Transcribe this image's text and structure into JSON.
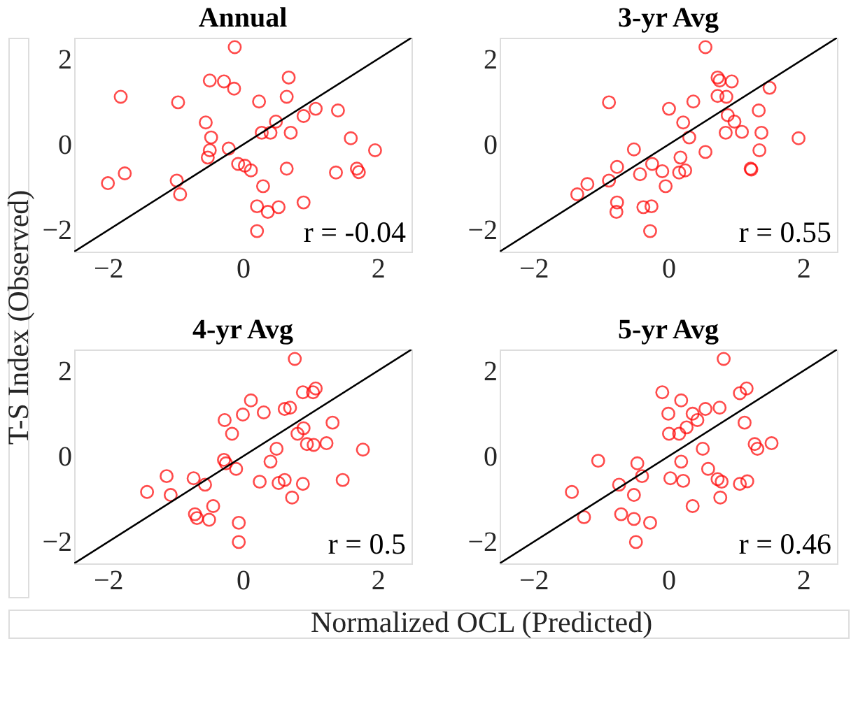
{
  "chart_data": [
    {
      "type": "scatter",
      "title": "Annual",
      "ylabel": "T-S Index (Observed)",
      "xlim": [
        -2.5,
        2.5
      ],
      "ylim": [
        -2.5,
        2.5
      ],
      "xticks": [
        -2,
        0,
        2
      ],
      "yticks": [
        -2,
        0,
        2
      ],
      "grid": false,
      "annotations": [
        "r = -0.04"
      ],
      "series": [
        {
          "type": "scatter",
          "marker": "circle",
          "color": "#ff0000",
          "x": [
            -0.12,
            -1.81,
            -0.96,
            -0.49,
            -0.28,
            -0.13,
            0.68,
            0.24,
            0.65,
            -0.55,
            -0.47,
            -0.49,
            -0.52,
            -0.21,
            0.49,
            0.28,
            0.41,
            0.71,
            0.9,
            1.08,
            1.41,
            1.6,
            1.96,
            1.38,
            1.69,
            1.72,
            0.65,
            -0.07,
            0.03,
            0.12,
            0.3,
            0.9,
            0.53,
            0.37,
            0.21,
            0.21,
            -2.0,
            -1.75,
            -0.98,
            -0.93
          ],
          "values": [
            2.28,
            1.12,
            0.99,
            1.5,
            1.48,
            1.31,
            1.57,
            1.01,
            1.12,
            0.52,
            0.17,
            -0.13,
            -0.3,
            -0.09,
            0.54,
            0.28,
            0.28,
            0.28,
            0.67,
            0.84,
            0.8,
            0.15,
            -0.13,
            -0.65,
            -0.56,
            -0.64,
            -0.56,
            -0.45,
            -0.49,
            -0.6,
            -0.97,
            -1.35,
            -1.46,
            -1.57,
            -1.44,
            -2.02,
            -0.9,
            -0.67,
            -0.84,
            -1.16
          ]
        },
        {
          "type": "line",
          "marker": "none",
          "line_style": "solid",
          "color": "#000000",
          "x": [
            -2.5,
            2.5
          ],
          "values": [
            -2.5,
            2.5
          ]
        }
      ]
    },
    {
      "type": "scatter",
      "title": "3-yr Avg",
      "xlim": [
        -2.5,
        2.5
      ],
      "ylim": [
        -2.5,
        2.5
      ],
      "xticks": [
        -2,
        0,
        2
      ],
      "yticks": [
        -2,
        0,
        2
      ],
      "grid": false,
      "annotations": [
        "r = 0.55"
      ],
      "series": [
        {
          "type": "scatter",
          "marker": "circle",
          "color": "#ff0000",
          "x": [
            0.55,
            -0.88,
            0.73,
            0.76,
            0.94,
            0.73,
            0.86,
            1.5,
            0.01,
            0.37,
            0.22,
            0.31,
            0.88,
            0.98,
            1.09,
            0.85,
            1.34,
            1.38,
            1.35,
            1.93,
            1.22,
            1.23,
            0.55,
            -0.51,
            0.18,
            0.16,
            0.25,
            -0.09,
            -0.24,
            -0.42,
            -0.76,
            -0.88,
            -1.2,
            -1.35,
            -0.04,
            -0.76,
            -0.77,
            -0.37,
            -0.25,
            -0.27
          ],
          "values": [
            2.28,
            0.99,
            1.57,
            1.5,
            1.48,
            1.14,
            1.12,
            1.33,
            0.84,
            1.01,
            0.52,
            0.17,
            0.69,
            0.54,
            0.3,
            0.28,
            0.8,
            0.28,
            -0.13,
            0.15,
            -0.56,
            -0.58,
            -0.17,
            -0.11,
            -0.3,
            -0.65,
            -0.6,
            -0.62,
            -0.45,
            -0.69,
            -0.52,
            -0.84,
            -0.92,
            -1.16,
            -0.97,
            -1.35,
            -1.57,
            -1.46,
            -1.44,
            -2.02
          ]
        },
        {
          "type": "line",
          "marker": "none",
          "line_style": "solid",
          "color": "#000000",
          "x": [
            -2.5,
            2.5
          ],
          "values": [
            -2.5,
            2.5
          ]
        }
      ]
    },
    {
      "type": "scatter",
      "title": "4-yr Avg",
      "xlabel": "Normalized OCL (Predicted)",
      "xlim": [
        -2.5,
        2.5
      ],
      "ylim": [
        -2.5,
        2.5
      ],
      "xticks": [
        -2,
        0,
        2
      ],
      "yticks": [
        -2,
        0,
        2
      ],
      "grid": false,
      "annotations": [
        "r = 0.5"
      ],
      "series": [
        {
          "type": "scatter",
          "marker": "circle",
          "color": "#ff0000",
          "x": [
            0.77,
            0.12,
            0.31,
            -0.27,
            0.0,
            -0.16,
            0.62,
            0.7,
            0.89,
            1.04,
            1.08,
            1.33,
            0.9,
            0.81,
            0.95,
            1.05,
            1.24,
            1.78,
            0.5,
            0.41,
            -0.28,
            -0.25,
            -0.1,
            0.25,
            0.53,
            0.62,
            0.89,
            1.48,
            0.73,
            -0.73,
            -0.56,
            -1.13,
            -1.42,
            -1.07,
            -0.44,
            -0.71,
            -0.68,
            -0.5,
            -0.06,
            -0.06
          ],
          "values": [
            2.28,
            1.31,
            1.03,
            0.85,
            0.98,
            0.53,
            1.11,
            1.14,
            1.5,
            1.5,
            1.59,
            0.79,
            0.66,
            0.53,
            0.29,
            0.27,
            0.31,
            0.16,
            0.18,
            -0.12,
            -0.08,
            -0.16,
            -0.29,
            -0.59,
            -0.62,
            -0.55,
            -0.64,
            -0.55,
            -0.96,
            -0.51,
            -0.66,
            -0.46,
            -0.83,
            -0.9,
            -1.16,
            -1.35,
            -1.44,
            -1.48,
            -1.55,
            -2.0
          ]
        },
        {
          "type": "line",
          "marker": "none",
          "line_style": "solid",
          "color": "#000000",
          "x": [
            -2.5,
            2.5
          ],
          "values": [
            -2.5,
            2.5
          ]
        }
      ]
    },
    {
      "type": "scatter",
      "title": "5-yr Avg",
      "xlim": [
        -2.5,
        2.5
      ],
      "ylim": [
        -2.5,
        2.5
      ],
      "xticks": [
        -2,
        0,
        2
      ],
      "yticks": [
        -2,
        0,
        2
      ],
      "grid": false,
      "annotations": [
        "r = 0.46"
      ],
      "series": [
        {
          "type": "scatter",
          "marker": "circle",
          "color": "#ff0000",
          "x": [
            0.82,
            -0.09,
            0.19,
            0.0,
            0.36,
            0.55,
            0.76,
            1.06,
            1.16,
            1.13,
            0.43,
            0.27,
            0.01,
            0.16,
            1.28,
            1.32,
            1.53,
            0.51,
            0.19,
            0.59,
            0.03,
            0.22,
            0.73,
            0.79,
            1.06,
            1.17,
            0.77,
            0.36,
            -1.04,
            -0.46,
            -0.39,
            -0.73,
            -0.51,
            -1.43,
            -1.25,
            -0.7,
            -0.51,
            -0.27,
            -0.48
          ],
          "values": [
            2.28,
            1.5,
            1.31,
            1.0,
            1.0,
            1.11,
            1.14,
            1.48,
            1.59,
            0.79,
            0.85,
            0.68,
            0.53,
            0.53,
            0.29,
            0.18,
            0.31,
            0.18,
            -0.12,
            -0.29,
            -0.51,
            -0.57,
            -0.53,
            -0.59,
            -0.64,
            -0.58,
            -0.96,
            -1.16,
            -0.1,
            -0.16,
            -0.46,
            -0.66,
            -0.9,
            -0.83,
            -1.42,
            -1.35,
            -1.46,
            -1.55,
            -2.0
          ]
        },
        {
          "type": "line",
          "marker": "none",
          "line_style": "solid",
          "color": "#000000",
          "x": [
            -2.5,
            2.5
          ],
          "values": [
            -2.5,
            2.5
          ]
        }
      ]
    }
  ]
}
